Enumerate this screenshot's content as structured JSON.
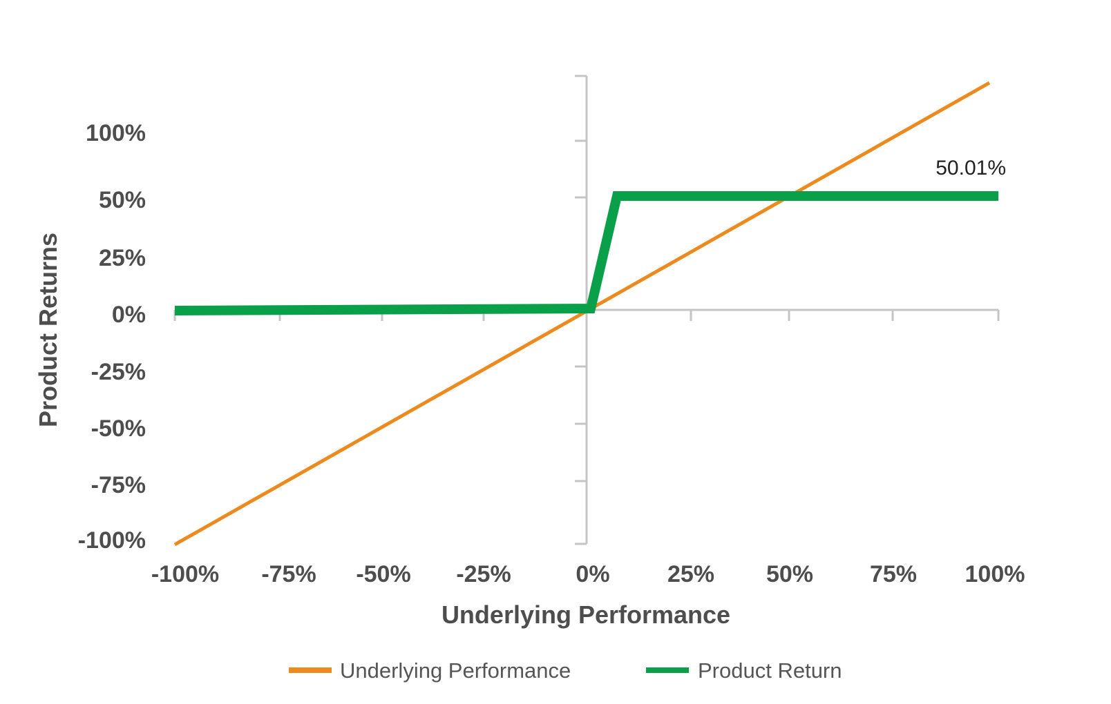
{
  "chart_data": {
    "type": "line",
    "xlabel": "Underlying Performance",
    "ylabel": "Product Returns",
    "x_ticks": [
      "-100%",
      "-75%",
      "-50%",
      "-25%",
      "0%",
      "25%",
      "50%",
      "75%",
      "100%"
    ],
    "y_ticks": [
      "100%",
      "50%",
      "25%",
      "0%",
      "-25%",
      "-50%",
      "-75%",
      "-100%"
    ],
    "xlim": [
      -100,
      100
    ],
    "ylim": [
      -100,
      100
    ],
    "annotation": "50.01%",
    "legend_position": "bottom",
    "series": [
      {
        "name": "Underlying Performance",
        "color": "#ec8a1e",
        "points": [
          [
            -100,
            -100
          ],
          [
            100,
            100
          ]
        ]
      },
      {
        "name": "Product Return",
        "color": "#0aa04a",
        "points": [
          [
            -100,
            0
          ],
          [
            0,
            0
          ],
          [
            7,
            50
          ],
          [
            100,
            50
          ]
        ]
      }
    ],
    "axis_color": "#c4c4c4"
  }
}
